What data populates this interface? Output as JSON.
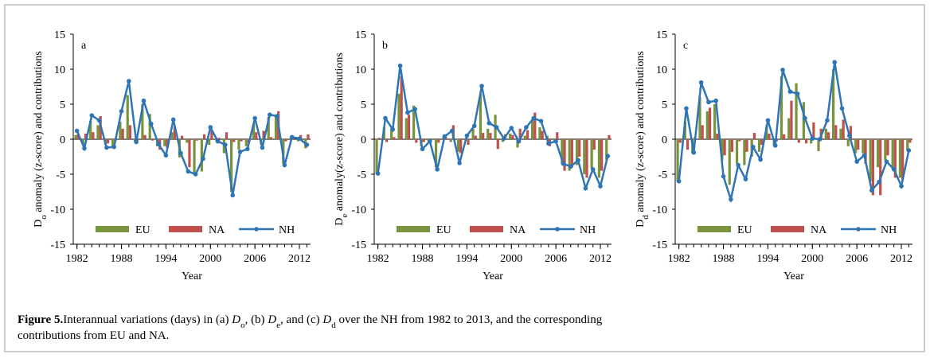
{
  "chart_data": [
    {
      "type": "combo",
      "panel": "a",
      "ylabel": [
        "D",
        "o",
        " anomaly (z-score) and contributions"
      ],
      "xlabel": "Year",
      "x": [
        1982,
        1983,
        1984,
        1985,
        1986,
        1987,
        1988,
        1989,
        1990,
        1991,
        1992,
        1993,
        1994,
        1995,
        1996,
        1997,
        1998,
        1999,
        2000,
        2001,
        2002,
        2003,
        2004,
        2005,
        2006,
        2007,
        2008,
        2009,
        2010,
        2011,
        2012,
        2013
      ],
      "xlim": [
        1981.5,
        2013.5
      ],
      "xticks": [
        1982,
        1988,
        1994,
        2000,
        2006,
        2012
      ],
      "ylim": [
        -15,
        15
      ],
      "yticks": [
        -15,
        -10,
        -5,
        0,
        5,
        10,
        15
      ],
      "series": [
        {
          "name": "EU",
          "type": "bar",
          "color": "#77933c",
          "values": [
            0.6,
            -0.8,
            2.6,
            2,
            -0.8,
            -1,
            2.5,
            6.3,
            -0.3,
            5,
            3.6,
            -1,
            -1,
            1,
            -2.6,
            -0.5,
            -5,
            -4.6,
            -0.8,
            -0.3,
            -2,
            -7.5,
            -1.5,
            -1,
            2.2,
            -0.8,
            3.2,
            3.4,
            -3.5,
            0.2,
            -0.3,
            -1.3
          ]
        },
        {
          "name": "NA",
          "type": "bar",
          "color": "#c0504d",
          "values": [
            0.8,
            0.8,
            1,
            3.3,
            -0.6,
            -0.3,
            1.5,
            2,
            -0.2,
            0.6,
            -0.2,
            -1.5,
            -1.2,
            1.8,
            0.5,
            -4,
            -0.2,
            0.7,
            1.2,
            0.2,
            1,
            -0.4,
            -0.3,
            -0.5,
            1,
            1.2,
            0.3,
            4,
            -0.3,
            0.3,
            0.6,
            0.7
          ]
        },
        {
          "name": "NH",
          "type": "line",
          "color": "#2e75b6",
          "values": [
            1.2,
            -1.3,
            3.4,
            2.7,
            -1.2,
            -1.1,
            4,
            8.3,
            -0.4,
            5.5,
            2.2,
            -0.7,
            -2.3,
            2.8,
            -2,
            -4.6,
            -5,
            -2.8,
            1.7,
            -0.3,
            -0.8,
            -8,
            -1.8,
            -1.4,
            3,
            -1.2,
            3.5,
            3.3,
            -3.7,
            0.3,
            0.1,
            -0.8
          ]
        }
      ]
    },
    {
      "type": "combo",
      "panel": "b",
      "ylabel": [
        "D",
        "e",
        " anomaly(z-score) and contributions"
      ],
      "xlabel": "Year",
      "x": [
        1982,
        1983,
        1984,
        1985,
        1986,
        1987,
        1988,
        1989,
        1990,
        1991,
        1992,
        1993,
        1994,
        1995,
        1996,
        1997,
        1998,
        1999,
        2000,
        2001,
        2002,
        2003,
        2004,
        2005,
        2006,
        2007,
        2008,
        2009,
        2010,
        2011,
        2012,
        2013
      ],
      "xlim": [
        1981.5,
        2013.5
      ],
      "xticks": [
        1982,
        1988,
        1994,
        2000,
        2006,
        2012
      ],
      "ylim": [
        -15,
        15
      ],
      "yticks": [
        -15,
        -10,
        -5,
        0,
        5,
        10,
        15
      ],
      "series": [
        {
          "name": "EU",
          "type": "bar",
          "color": "#77933c",
          "values": [
            -5,
            1.7,
            1.5,
            6.5,
            3,
            4.8,
            -1,
            -0.3,
            -4,
            0.3,
            -0.4,
            -1.8,
            0,
            1.5,
            6.5,
            1.5,
            3.5,
            -0.4,
            0.8,
            -1.2,
            0.5,
            2.8,
            1.7,
            0.5,
            -0.5,
            -3.5,
            -4.5,
            -3.7,
            -5,
            -4.2,
            -5.5,
            -3
          ]
        },
        {
          "name": "NA",
          "type": "bar",
          "color": "#c0504d",
          "values": [
            0.2,
            -0.4,
            0.3,
            9,
            3.5,
            -0.5,
            -0.4,
            0,
            -0.5,
            0.2,
            2,
            -2,
            -0.8,
            0.5,
            0.9,
            0.9,
            -1.4,
            0.7,
            0.6,
            1.5,
            1.3,
            3.8,
            1.2,
            -1,
            1,
            -4.5,
            -4,
            -2.5,
            -5.5,
            -1.5,
            -4.5,
            0.6
          ]
        },
        {
          "name": "NH",
          "type": "line",
          "color": "#2e75b6",
          "values": [
            -4.9,
            3,
            1.4,
            10.5,
            3.8,
            4.3,
            -1.4,
            -0.3,
            -4.3,
            0.4,
            1.2,
            -3.4,
            0.5,
            1.9,
            7.6,
            2.3,
            1.7,
            0.1,
            1.6,
            -0.3,
            1.7,
            3,
            2.6,
            -0.6,
            -0.3,
            -3.5,
            -3.9,
            -3,
            -7,
            -4.3,
            -6.7,
            -2.4
          ]
        }
      ]
    },
    {
      "type": "combo",
      "panel": "c",
      "ylabel": [
        "D",
        "d",
        " anomaly (z-score) and contributions"
      ],
      "xlabel": "Year",
      "x": [
        1982,
        1983,
        1984,
        1985,
        1986,
        1987,
        1988,
        1989,
        1990,
        1991,
        1992,
        1993,
        1994,
        1995,
        1996,
        1997,
        1998,
        1999,
        2000,
        2001,
        2002,
        2003,
        2004,
        2005,
        2006,
        2007,
        2008,
        2009,
        2010,
        2011,
        2012,
        2013
      ],
      "xlim": [
        1981.5,
        2013.5
      ],
      "xticks": [
        1982,
        1988,
        1994,
        2000,
        2006,
        2012
      ],
      "ylim": [
        -15,
        15
      ],
      "yticks": [
        -15,
        -10,
        -5,
        0,
        5,
        10,
        15
      ],
      "series": [
        {
          "name": "EU",
          "type": "bar",
          "color": "#77933c",
          "values": [
            -6,
            2.5,
            -2,
            6,
            4,
            5,
            -3,
            -6.5,
            -3.5,
            -3.7,
            -2.5,
            -1.8,
            2,
            -0.9,
            9,
            3,
            8,
            5.3,
            -0.6,
            -1.7,
            1.5,
            10,
            1.5,
            -1,
            -2,
            -2,
            -6,
            -4,
            -3,
            -4.3,
            -5.5,
            -1.7
          ]
        },
        {
          "name": "NA",
          "type": "bar",
          "color": "#c0504d",
          "values": [
            -0.5,
            -1.5,
            0.3,
            2,
            4.5,
            0.8,
            -2.3,
            -1.8,
            -0.3,
            -1.8,
            0.9,
            -0.8,
            0.8,
            -0.3,
            0.7,
            5.5,
            -0.5,
            -0.6,
            2.4,
            1.5,
            1,
            2,
            2.8,
            1.9,
            -1.5,
            -3.5,
            -8,
            -8,
            -2.3,
            -5.5,
            -5.8,
            -0.5
          ]
        },
        {
          "name": "NH",
          "type": "line",
          "color": "#2e75b6",
          "values": [
            -6,
            4.4,
            -1.9,
            8.1,
            5.3,
            5.5,
            -5.3,
            -8.6,
            -3.7,
            -5.7,
            -1.1,
            -2.9,
            2.7,
            -0.9,
            9.9,
            6.8,
            6.5,
            3,
            0.1,
            0,
            2.7,
            11,
            4.4,
            0.5,
            -3.2,
            -2.3,
            -7.3,
            -6.1,
            -3.2,
            -4.3,
            -6.7,
            -1.6
          ]
        }
      ]
    }
  ],
  "caption": {
    "label": "Figure 5.",
    "parts": [
      "Interannual variations (days) in (a) ",
      "D",
      "o",
      ", (b) ",
      "D",
      "e",
      ", and (c) ",
      "D",
      "d",
      " over the NH from 1982 to 2013, and the corresponding",
      "contributions from EU and NA."
    ]
  }
}
